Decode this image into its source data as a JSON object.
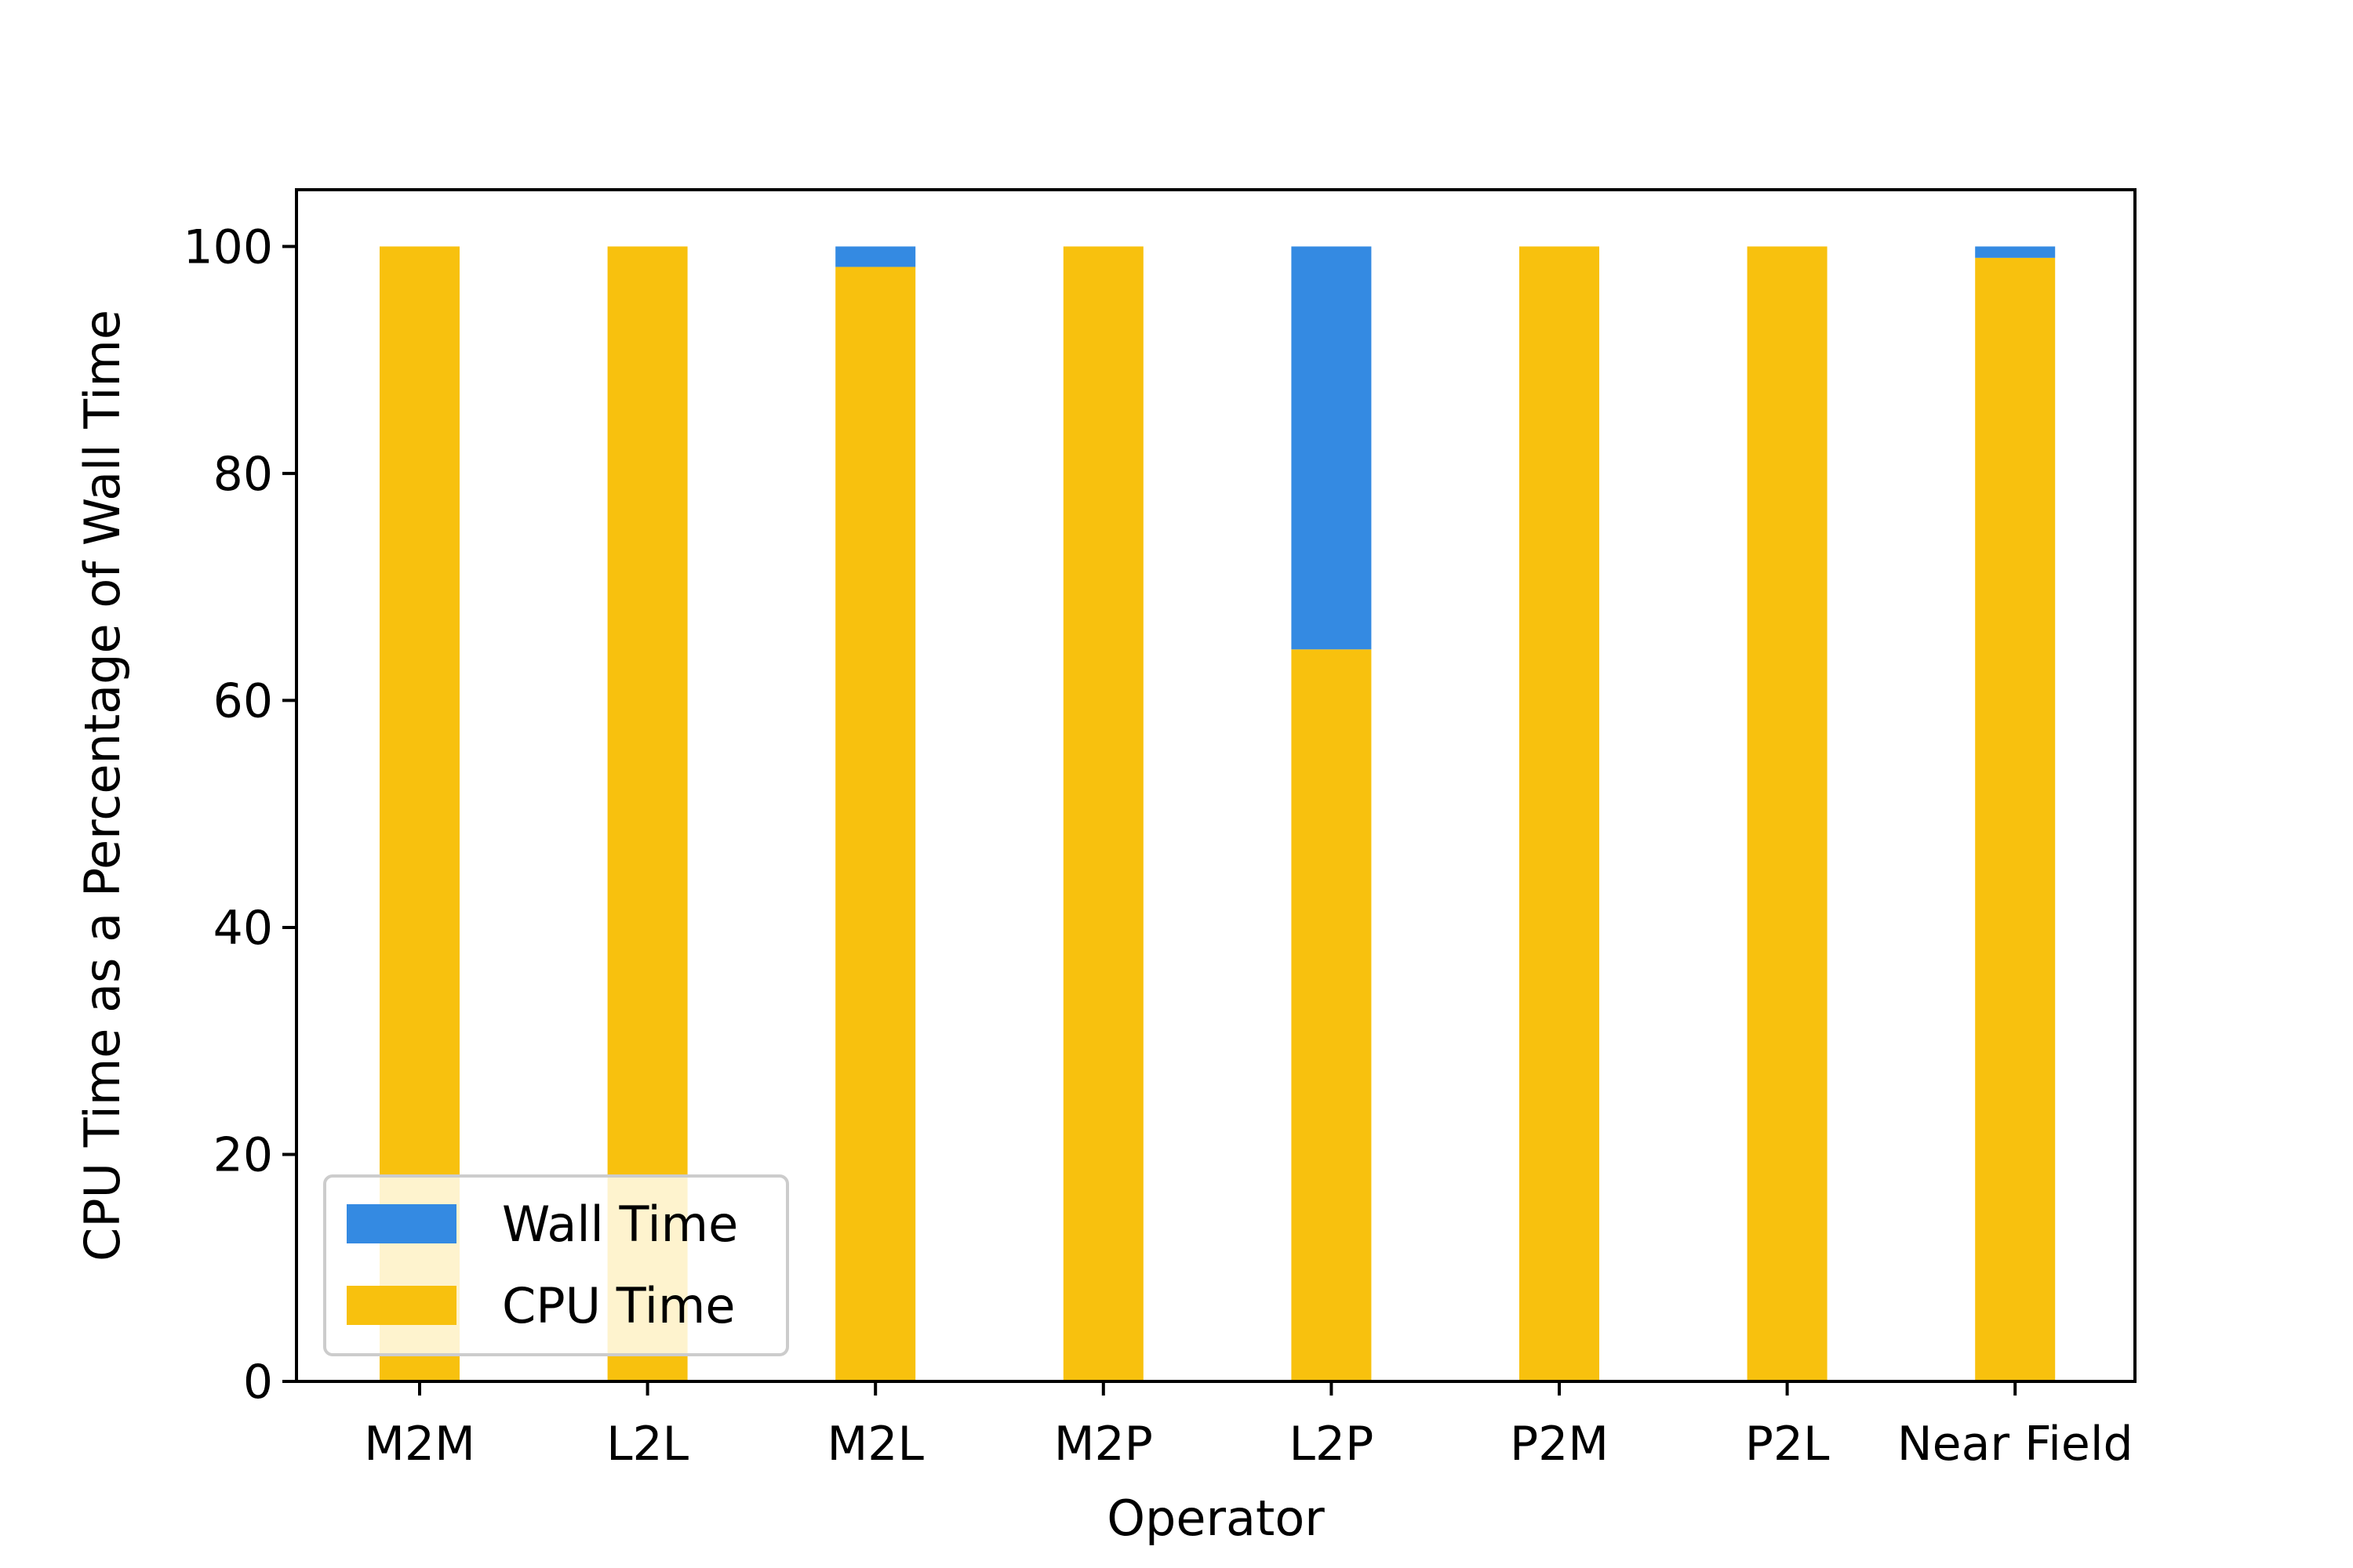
{
  "chart_data": {
    "type": "bar",
    "stacked": true,
    "title": "",
    "xlabel": "Operator",
    "ylabel": "CPU Time as a Percentage of Wall Time",
    "categories": [
      "M2M",
      "L2L",
      "M2L",
      "M2P",
      "L2P",
      "P2M",
      "P2L",
      "Near Field"
    ],
    "series": [
      {
        "name": "CPU Time",
        "color": "#F8C10E",
        "values": [
          100,
          100,
          98.2,
          100,
          64.5,
          100,
          100,
          99.0
        ]
      },
      {
        "name": "Wall Time",
        "color": "#348AE2",
        "values": [
          0,
          0,
          1.8,
          0,
          35.5,
          0,
          0,
          1.0
        ]
      }
    ],
    "ylim": [
      0,
      105
    ],
    "yticks": [
      0,
      20,
      40,
      60,
      80,
      100
    ],
    "grid": false,
    "legend": {
      "location": "lower-left",
      "entries": [
        "Wall Time",
        "CPU Time"
      ]
    }
  }
}
